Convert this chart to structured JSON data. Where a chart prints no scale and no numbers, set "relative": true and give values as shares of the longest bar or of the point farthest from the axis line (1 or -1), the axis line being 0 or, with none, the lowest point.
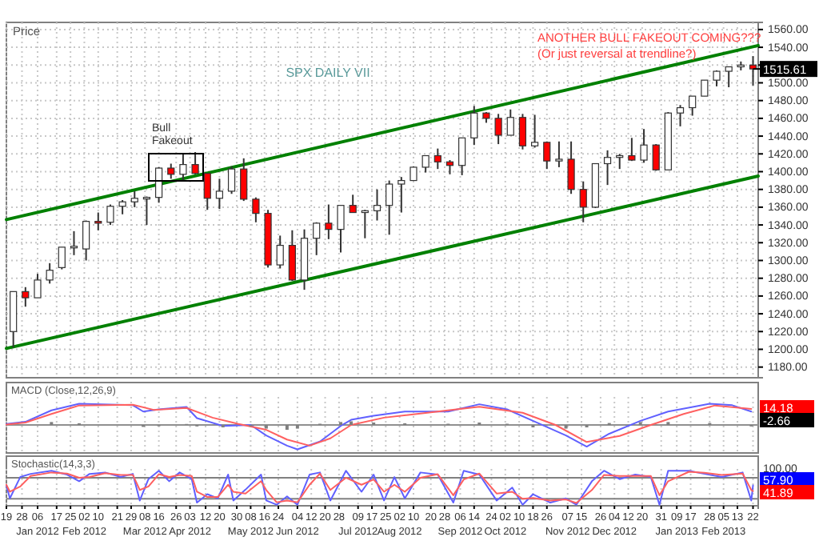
{
  "chart_data": [
    {
      "type": "candlestick",
      "title": "SPX DAILY VII",
      "ylabel": "Price",
      "x": [
        "2011-12-23",
        "2011-12-30",
        "2012-01-06",
        "2012-01-13",
        "2012-01-20",
        "2012-01-27",
        "2012-02-03",
        "2012-02-10",
        "2012-02-17",
        "2012-02-24",
        "2012-03-02",
        "2012-03-09",
        "2012-03-16",
        "2012-03-23",
        "2012-03-30",
        "2012-04-06",
        "2012-04-13",
        "2012-04-20",
        "2012-04-27",
        "2012-05-04",
        "2012-05-11",
        "2012-05-18",
        "2012-05-25",
        "2012-06-01",
        "2012-06-08",
        "2012-06-15",
        "2012-06-22",
        "2012-06-29",
        "2012-07-06",
        "2012-07-13",
        "2012-07-20",
        "2012-07-27",
        "2012-08-03",
        "2012-08-10",
        "2012-08-17",
        "2012-08-24",
        "2012-08-31",
        "2012-09-07",
        "2012-09-14",
        "2012-09-21",
        "2012-09-28",
        "2012-10-05",
        "2012-10-12",
        "2012-10-19",
        "2012-10-26",
        "2012-11-02",
        "2012-11-09",
        "2012-11-16",
        "2012-11-23",
        "2012-11-30",
        "2012-12-07",
        "2012-12-14",
        "2012-12-21",
        "2012-12-28",
        "2013-01-04",
        "2013-01-11",
        "2013-01-18",
        "2013-01-25",
        "2013-02-01",
        "2013-02-08",
        "2013-02-15",
        "2013-02-22"
      ],
      "ohlc": [
        [
          1220,
          1265,
          1202,
          1265
        ],
        [
          1265,
          1270,
          1248,
          1258
        ],
        [
          1258,
          1285,
          1258,
          1278
        ],
        [
          1278,
          1297,
          1274,
          1289
        ],
        [
          1292,
          1315,
          1290,
          1315
        ],
        [
          1315,
          1333,
          1306,
          1316
        ],
        [
          1313,
          1345,
          1300,
          1344
        ],
        [
          1344,
          1354,
          1334,
          1342
        ],
        [
          1343,
          1363,
          1340,
          1361
        ],
        [
          1361,
          1368,
          1352,
          1366
        ],
        [
          1366,
          1378,
          1360,
          1370
        ],
        [
          1370,
          1372,
          1340,
          1371
        ],
        [
          1371,
          1405,
          1365,
          1404
        ],
        [
          1404,
          1409,
          1392,
          1397
        ],
        [
          1397,
          1420,
          1389,
          1408
        ],
        [
          1408,
          1422,
          1397,
          1398
        ],
        [
          1398,
          1398,
          1357,
          1370
        ],
        [
          1370,
          1392,
          1358,
          1378
        ],
        [
          1378,
          1406,
          1375,
          1403
        ],
        [
          1403,
          1415,
          1367,
          1369
        ],
        [
          1369,
          1371,
          1343,
          1353
        ],
        [
          1353,
          1357,
          1292,
          1295
        ],
        [
          1295,
          1328,
          1291,
          1317
        ],
        [
          1317,
          1334,
          1277,
          1278
        ],
        [
          1278,
          1335,
          1267,
          1325
        ],
        [
          1325,
          1343,
          1306,
          1342
        ],
        [
          1342,
          1363,
          1324,
          1335
        ],
        [
          1335,
          1362,
          1309,
          1362
        ],
        [
          1362,
          1374,
          1354,
          1354
        ],
        [
          1354,
          1357,
          1325,
          1356
        ],
        [
          1356,
          1380,
          1345,
          1362
        ],
        [
          1362,
          1390,
          1329,
          1386
        ],
        [
          1386,
          1394,
          1354,
          1390
        ],
        [
          1390,
          1406,
          1390,
          1405
        ],
        [
          1405,
          1418,
          1399,
          1418
        ],
        [
          1418,
          1426,
          1403,
          1411
        ],
        [
          1411,
          1413,
          1397,
          1407
        ],
        [
          1407,
          1438,
          1396,
          1438
        ],
        [
          1438,
          1474,
          1430,
          1466
        ],
        [
          1466,
          1467,
          1455,
          1460
        ],
        [
          1460,
          1465,
          1431,
          1441
        ],
        [
          1441,
          1470,
          1441,
          1461
        ],
        [
          1461,
          1465,
          1425,
          1429
        ],
        [
          1429,
          1464,
          1427,
          1433
        ],
        [
          1433,
          1434,
          1403,
          1412
        ],
        [
          1412,
          1434,
          1405,
          1414
        ],
        [
          1414,
          1434,
          1375,
          1380
        ],
        [
          1380,
          1389,
          1343,
          1360
        ],
        [
          1360,
          1409,
          1359,
          1409
        ],
        [
          1409,
          1424,
          1385,
          1416
        ],
        [
          1416,
          1420,
          1403,
          1418
        ],
        [
          1418,
          1438,
          1412,
          1413
        ],
        [
          1413,
          1448,
          1410,
          1430
        ],
        [
          1430,
          1431,
          1401,
          1402
        ],
        [
          1402,
          1467,
          1402,
          1466
        ],
        [
          1466,
          1475,
          1451,
          1472
        ],
        [
          1472,
          1485,
          1463,
          1485
        ],
        [
          1485,
          1503,
          1485,
          1503
        ],
        [
          1503,
          1514,
          1496,
          1513
        ],
        [
          1513,
          1518,
          1495,
          1518
        ],
        [
          1518,
          1524,
          1514,
          1520
        ],
        [
          1520,
          1530,
          1497,
          1515.61
        ]
      ],
      "colors": [
        "#ffffff",
        "#ff0000",
        "#ffffff",
        "#ffffff",
        "#ffffff",
        "#ffffff",
        "#ffffff",
        "#ff0000",
        "#ffffff",
        "#ffffff",
        "#ffffff",
        "#ffffff",
        "#ffffff",
        "#ff0000",
        "#ffffff",
        "#ff0000",
        "#ff0000",
        "#ffffff",
        "#ffffff",
        "#ff0000",
        "#ff0000",
        "#ff0000",
        "#ffffff",
        "#ff0000",
        "#ffffff",
        "#ffffff",
        "#ff0000",
        "#ffffff",
        "#ff0000",
        "#ffffff",
        "#ffffff",
        "#ffffff",
        "#ffffff",
        "#ffffff",
        "#ffffff",
        "#ff0000",
        "#ff0000",
        "#ffffff",
        "#ffffff",
        "#ff0000",
        "#ff0000",
        "#ffffff",
        "#ff0000",
        "#ffffff",
        "#ff0000",
        "#ffffff",
        "#ff0000",
        "#ff0000",
        "#ffffff",
        "#ffffff",
        "#ffffff",
        "#ff0000",
        "#ffffff",
        "#ff0000",
        "#ffffff",
        "#ffffff",
        "#ffffff",
        "#ffffff",
        "#ffffff",
        "#ffffff",
        "#ffffff",
        "#ff0000"
      ],
      "series": [
        {
          "type": "line",
          "color": "#008000",
          "x": [
            "2011-12-19",
            "2013-02-25"
          ],
          "values": [
            1346,
            1542
          ]
        },
        {
          "type": "line",
          "color": "#008000",
          "x": [
            "2011-12-19",
            "2013-02-25"
          ],
          "values": [
            1201,
            1395
          ]
        }
      ],
      "xlim": [
        "2011-12-19",
        "2013-02-25"
      ],
      "ylim": [
        1168,
        1568
      ],
      "yticks": [
        {
          "value": 1180,
          "label": "1180.00"
        },
        {
          "value": 1200,
          "label": "1200.00"
        },
        {
          "value": 1220,
          "label": "1220.00"
        },
        {
          "value": 1240,
          "label": "1240.00"
        },
        {
          "value": 1260,
          "label": "1260.00"
        },
        {
          "value": 1280,
          "label": "1280.00"
        },
        {
          "value": 1300,
          "label": "1300.00"
        },
        {
          "value": 1320,
          "label": "1320.00"
        },
        {
          "value": 1340,
          "label": "1340.00"
        },
        {
          "value": 1360,
          "label": "1360.00"
        },
        {
          "value": 1380,
          "label": "1380.00"
        },
        {
          "value": 1400,
          "label": "1400.00"
        },
        {
          "value": 1420,
          "label": "1420.00"
        },
        {
          "value": 1440,
          "label": "1440.00"
        },
        {
          "value": 1460,
          "label": "1460.00"
        },
        {
          "value": 1480,
          "label": "1480.00"
        },
        {
          "value": 1500,
          "label": "1500.00"
        },
        {
          "value": 1520,
          "label": null
        },
        {
          "value": 1540,
          "label": "1540.00"
        },
        {
          "value": 1560,
          "label": "1560.00"
        }
      ],
      "annotations": [
        "Bull Fakeout",
        "ANOTHER BULL FAKEOUT COMING???",
        "(Or just reversal at trendline?)",
        {
          "text": "1515.61",
          "x": "2013-02-22",
          "y": 1515.61
        }
      ],
      "grid": true,
      "tick_labels": "y"
    },
    {
      "type": "line",
      "title": "MACD (Close,12,26,9)",
      "relative": true,
      "series": [
        {
          "color": "#6060ff",
          "x": [
            "2011-12-19",
            "2011-12-30",
            "2012-01-14",
            "2012-01-30",
            "2012-03-01",
            "2012-03-07",
            "2012-03-16",
            "2012-04-01",
            "2012-04-07",
            "2012-04-22",
            "2012-05-08",
            "2012-05-17",
            "2012-05-29",
            "2012-06-04",
            "2012-06-17",
            "2012-06-29",
            "2012-07-05",
            "2012-07-18",
            "2012-08-05",
            "2012-08-30",
            "2012-09-17",
            "2012-10-03",
            "2012-10-18",
            "2012-11-06",
            "2012-11-18",
            "2012-12-01",
            "2012-12-19",
            "2013-01-04",
            "2013-01-28",
            "2013-02-10",
            "2013-02-21"
          ],
          "values": [
            0.04,
            0.13,
            0.6,
            0.87,
            0.81,
            0.55,
            0.64,
            0.74,
            0.28,
            -0.04,
            0,
            -0.43,
            -0.85,
            -1,
            -0.68,
            -0.04,
            0.21,
            0.38,
            0.55,
            0.55,
            0.85,
            0.64,
            0.17,
            -0.43,
            -0.89,
            -0.36,
            0.17,
            0.55,
            0.87,
            0.81,
            0.55
          ]
        },
        {
          "color": "#ff6060",
          "x": [
            "2011-12-19",
            "2011-12-30",
            "2012-01-14",
            "2012-01-30",
            "2012-03-01",
            "2012-03-13",
            "2012-04-01",
            "2012-04-16",
            "2012-05-01",
            "2012-05-17",
            "2012-05-29",
            "2012-06-11",
            "2012-06-23",
            "2012-07-05",
            "2012-07-24",
            "2012-08-18",
            "2012-09-17",
            "2012-10-12",
            "2012-10-31",
            "2012-11-18",
            "2012-12-07",
            "2012-12-25",
            "2013-01-13",
            "2013-01-31",
            "2013-02-21"
          ],
          "values": [
            0.02,
            0.1,
            0.45,
            0.8,
            0.83,
            0.62,
            0.7,
            0.3,
            0.04,
            -0.2,
            -0.6,
            -0.85,
            -0.55,
            0,
            0.3,
            0.5,
            0.75,
            0.5,
            0,
            -0.7,
            -0.45,
            0,
            0.45,
            0.8,
            0.66
          ]
        },
        {
          "type": "bar",
          "color": "#808080",
          "x": [
            "2012-01-14",
            "2012-01-30",
            "2012-03-07",
            "2012-03-16",
            "2012-04-01",
            "2012-04-07",
            "2012-04-22",
            "2012-05-08",
            "2012-05-17",
            "2012-05-29",
            "2012-06-04",
            "2012-06-17",
            "2012-06-29",
            "2012-07-05",
            "2012-07-18",
            "2012-08-05",
            "2012-08-30",
            "2012-09-17",
            "2012-10-03",
            "2012-10-18",
            "2012-11-06",
            "2012-11-18",
            "2012-12-01",
            "2012-12-19",
            "2013-01-04",
            "2013-01-28",
            "2013-02-21"
          ],
          "values": [
            0.12,
            0.07,
            -0.08,
            -0.05,
            0.04,
            -0.06,
            -0.1,
            -0.06,
            -0.15,
            -0.2,
            -0.15,
            0.05,
            0.12,
            0.15,
            0.1,
            0.07,
            0.05,
            0.1,
            0.05,
            -0.1,
            -0.15,
            -0.1,
            0.08,
            0.12,
            0.12,
            0.08,
            -0.06
          ]
        }
      ],
      "xlim": [
        "2011-12-19",
        "2013-02-25"
      ],
      "annotations": [
        "14.18",
        "-2.66"
      ],
      "grid": "x",
      "tick_labels": false
    },
    {
      "type": "line",
      "title": "Stochastic(14,3,3)",
      "relative": true,
      "series": [
        {
          "color": "#6060ff",
          "x": [
            "2011-12-19",
            "2011-12-21",
            "2011-12-27",
            "2012-01-02",
            "2012-01-14",
            "2012-01-23",
            "2012-01-30",
            "2012-02-05",
            "2012-02-14",
            "2012-02-23",
            "2012-03-01",
            "2012-03-05",
            "2012-03-10",
            "2012-03-16",
            "2012-03-22",
            "2012-03-28",
            "2012-04-04",
            "2012-04-07",
            "2012-04-13",
            "2012-04-19",
            "2012-04-25",
            "2012-04-28",
            "2012-05-05",
            "2012-05-14",
            "2012-05-17",
            "2012-05-23",
            "2012-05-29",
            "2012-06-04",
            "2012-06-11",
            "2012-06-17",
            "2012-06-23",
            "2012-07-02",
            "2012-07-11",
            "2012-07-18",
            "2012-07-24",
            "2012-07-30",
            "2012-08-05",
            "2012-08-14",
            "2012-08-24",
            "2012-09-02",
            "2012-09-08",
            "2012-09-17",
            "2012-09-27",
            "2012-10-06",
            "2012-10-12",
            "2012-10-18",
            "2012-10-28",
            "2012-11-06",
            "2012-11-12",
            "2012-11-21",
            "2012-11-28",
            "2012-12-07",
            "2012-12-16",
            "2012-12-25",
            "2012-12-30",
            "2013-01-04",
            "2013-01-16",
            "2013-01-25",
            "2013-02-04",
            "2013-02-16",
            "2013-02-21",
            "2013-02-22"
          ],
          "values": [
            0.58,
            0.21,
            0.82,
            0.91,
            1,
            0.89,
            0.7,
            0.91,
            0.95,
            0.82,
            0.91,
            0.15,
            0.76,
            1,
            0.7,
            0.95,
            0.76,
            0.09,
            0.33,
            0.21,
            0.89,
            0.15,
            0.46,
            0.89,
            0.15,
            0.03,
            0.27,
            0.03,
            0.89,
            0.95,
            0.15,
            1,
            0.4,
            0.89,
            0.15,
            0.82,
            0.21,
            0.95,
            0.89,
            0.09,
            1,
            0.89,
            0.15,
            0.52,
            0.03,
            0.33,
            0.09,
            0.21,
            0.03,
            0.7,
            1,
            0.76,
            0.89,
            0.82,
            0.03,
            1,
            1,
            0.91,
            0.82,
            0.95,
            0.15,
            0.58
          ]
        },
        {
          "color": "#ff6060",
          "x": [
            "2011-12-19",
            "2011-12-21",
            "2011-12-27",
            "2012-01-02",
            "2012-01-14",
            "2012-01-23",
            "2012-01-30",
            "2012-02-05",
            "2012-02-14",
            "2012-02-23",
            "2012-03-01",
            "2012-03-05",
            "2012-03-10",
            "2012-03-16",
            "2012-03-22",
            "2012-03-28",
            "2012-04-04",
            "2012-04-07",
            "2012-04-13",
            "2012-04-19",
            "2012-04-25",
            "2012-04-28",
            "2012-05-05",
            "2012-05-14",
            "2012-05-17",
            "2012-05-23",
            "2012-05-29",
            "2012-06-04",
            "2012-06-11",
            "2012-06-17",
            "2012-06-23",
            "2012-07-02",
            "2012-07-11",
            "2012-07-18",
            "2012-07-24",
            "2012-07-30",
            "2012-08-05",
            "2012-08-14",
            "2012-08-24",
            "2012-09-02",
            "2012-09-08",
            "2012-09-17",
            "2012-09-27",
            "2012-10-06",
            "2012-10-12",
            "2012-10-18",
            "2012-10-28",
            "2012-11-06",
            "2012-11-12",
            "2012-11-21",
            "2012-11-28",
            "2012-12-07",
            "2012-12-16",
            "2012-12-25",
            "2012-12-30",
            "2013-01-04",
            "2013-01-16",
            "2013-01-25",
            "2013-02-04",
            "2013-02-16",
            "2013-02-21",
            "2013-02-22"
          ],
          "values": [
            0.6,
            0.4,
            0.55,
            0.85,
            0.95,
            0.92,
            0.8,
            0.82,
            0.93,
            0.88,
            0.88,
            0.45,
            0.55,
            0.9,
            0.82,
            0.88,
            0.85,
            0.4,
            0.25,
            0.25,
            0.6,
            0.4,
            0.35,
            0.7,
            0.45,
            0.1,
            0.15,
            0.1,
            0.6,
            0.92,
            0.45,
            0.8,
            0.6,
            0.75,
            0.4,
            0.6,
            0.4,
            0.8,
            0.9,
            0.3,
            0.75,
            0.92,
            0.35,
            0.4,
            0.2,
            0.22,
            0.15,
            0.18,
            0.08,
            0.45,
            0.88,
            0.85,
            0.85,
            0.85,
            0.3,
            0.7,
            0.97,
            0.94,
            0.88,
            0.92,
            0.45,
            0.42
          ]
        }
      ],
      "xlim": [
        "2011-12-19",
        "2013-02-25"
      ],
      "xticks": [
        {
          "value": "2011-12-19",
          "label": "19"
        },
        {
          "value": "2011-12-28",
          "label": "28"
        },
        {
          "value": "2012-01-06",
          "label": "06\nJan 2012"
        },
        {
          "value": "2012-01-17",
          "label": "17"
        },
        {
          "value": "2012-01-25",
          "label": "25"
        },
        {
          "value": "2012-02-02",
          "label": "02\nFeb 2012"
        },
        {
          "value": "2012-02-10",
          "label": "10"
        },
        {
          "value": "2012-02-21",
          "label": "21"
        },
        {
          "value": "2012-02-29",
          "label": "29"
        },
        {
          "value": "2012-03-08",
          "label": "08\nMar 2012"
        },
        {
          "value": "2012-03-16",
          "label": "16"
        },
        {
          "value": "2012-03-26",
          "label": "26"
        },
        {
          "value": "2012-04-03",
          "label": "03\nApr 2012"
        },
        {
          "value": "2012-04-12",
          "label": "12"
        },
        {
          "value": "2012-04-20",
          "label": "20"
        },
        {
          "value": "2012-04-30",
          "label": "30"
        },
        {
          "value": "2012-05-08",
          "label": "08\nMay 2012"
        },
        {
          "value": "2012-05-16",
          "label": "16"
        },
        {
          "value": "2012-05-24",
          "label": "24"
        },
        {
          "value": "2012-06-04",
          "label": "04\nJun 2012"
        },
        {
          "value": "2012-06-12",
          "label": "12"
        },
        {
          "value": "2012-06-20",
          "label": "20"
        },
        {
          "value": "2012-06-28",
          "label": "28"
        },
        {
          "value": "2012-07-09",
          "label": "09\nJul 2012"
        },
        {
          "value": "2012-07-17",
          "label": "17"
        },
        {
          "value": "2012-07-25",
          "label": "25"
        },
        {
          "value": "2012-08-02",
          "label": "02\nAug 2012"
        },
        {
          "value": "2012-08-10",
          "label": "10"
        },
        {
          "value": "2012-08-20",
          "label": "20"
        },
        {
          "value": "2012-08-28",
          "label": "28"
        },
        {
          "value": "2012-09-06",
          "label": "06\nSep 2012"
        },
        {
          "value": "2012-09-14",
          "label": "14"
        },
        {
          "value": "2012-09-24",
          "label": "24"
        },
        {
          "value": "2012-10-02",
          "label": "02\nOct 2012"
        },
        {
          "value": "2012-10-10",
          "label": "10"
        },
        {
          "value": "2012-10-18",
          "label": "18"
        },
        {
          "value": "2012-10-26",
          "label": "26"
        },
        {
          "value": "2012-11-07",
          "label": "07\nNov 2012"
        },
        {
          "value": "2012-11-15",
          "label": "15"
        },
        {
          "value": "2012-11-26",
          "label": "26"
        },
        {
          "value": "2012-12-04",
          "label": "04\nDec 2012"
        },
        {
          "value": "2012-12-12",
          "label": "12"
        },
        {
          "value": "2012-12-20",
          "label": "20"
        },
        {
          "value": "2012-12-31",
          "label": "31"
        },
        {
          "value": "2013-01-09",
          "label": "09\nJan 2013"
        },
        {
          "value": "2013-01-17",
          "label": "17"
        },
        {
          "value": "2013-01-28",
          "label": "28"
        },
        {
          "value": "2013-02-05",
          "label": "05\nFeb 2013"
        },
        {
          "value": "2013-02-13",
          "label": "13"
        },
        {
          "value": "2013-02-22",
          "label": "22"
        }
      ],
      "ref_lines": [
        {
          "axis": "y",
          "value": 0.8,
          "color": "#808080"
        },
        {
          "axis": "y",
          "value": 0.2,
          "color": "#808080"
        }
      ],
      "annotations": [
        "100.00",
        "57.90",
        "41.89"
      ],
      "grid": "x"
    }
  ]
}
